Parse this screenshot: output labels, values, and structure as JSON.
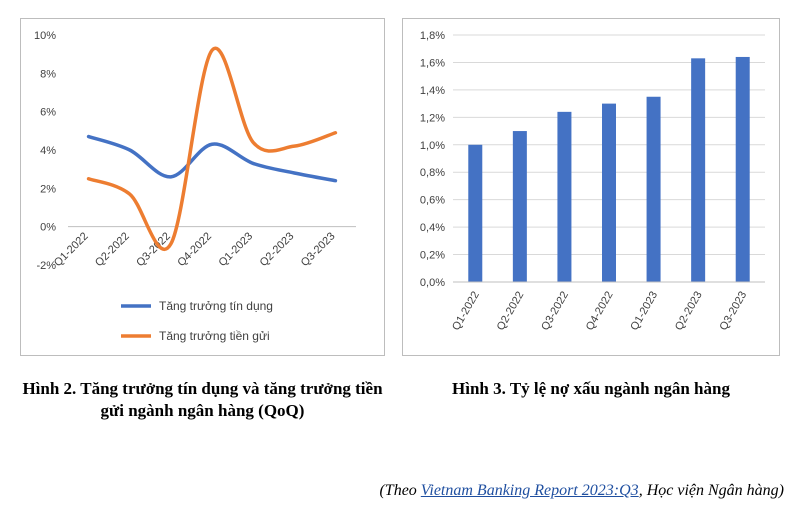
{
  "figures": {
    "left_caption": "Hình 2. Tăng trưởng tín dụng và tăng trưởng tiền gửi ngành ngân hàng (QoQ)",
    "right_caption": "Hình 3. Tỷ lệ nợ xấu ngành ngân hàng"
  },
  "source": {
    "prefix": "(Theo ",
    "link_text": "Vietnam Banking Report 2023:Q3",
    "suffix": ", Học viện Ngân hàng)"
  },
  "colors": {
    "credit": "#4472c4",
    "deposit": "#ed7d31",
    "bar": "#4472c4",
    "grid": "#d9d9d9",
    "axis_text": "#404040"
  },
  "chart_data": [
    {
      "type": "line",
      "categories": [
        "Q1-2022",
        "Q2-2022",
        "Q3-2022",
        "Q4-2022",
        "Q1-2023",
        "Q2-2023",
        "Q3-2023"
      ],
      "series": [
        {
          "name": "Tăng trưởng tín dụng",
          "values": [
            4.7,
            4.0,
            2.6,
            4.3,
            3.3,
            2.8,
            2.4
          ]
        },
        {
          "name": "Tăng trưởng tiền gửi",
          "values": [
            2.5,
            1.7,
            -0.9,
            9.2,
            4.4,
            4.2,
            4.9
          ]
        }
      ],
      "smooth": true,
      "ylim": [
        -2,
        10
      ],
      "yticks": [
        -2,
        0,
        2,
        4,
        6,
        8,
        10
      ],
      "ytick_labels": [
        "-2%",
        "0%",
        "2%",
        "4%",
        "6%",
        "8%",
        "10%"
      ],
      "grid": false,
      "legend": "bottom"
    },
    {
      "type": "bar",
      "categories": [
        "Q1-2022",
        "Q2-2022",
        "Q3-2022",
        "Q4-2022",
        "Q1-2023",
        "Q2-2023",
        "Q3-2023"
      ],
      "values": [
        1.0,
        1.1,
        1.24,
        1.3,
        1.35,
        1.63,
        1.64
      ],
      "ylim": [
        0,
        1.8
      ],
      "yticks": [
        0,
        0.2,
        0.4,
        0.6,
        0.8,
        1.0,
        1.2,
        1.4,
        1.6,
        1.8
      ],
      "ytick_labels": [
        "0,0%",
        "0,2%",
        "0,4%",
        "0,6%",
        "0,8%",
        "1,0%",
        "1,2%",
        "1,4%",
        "1,6%",
        "1,8%"
      ],
      "grid": true
    }
  ]
}
